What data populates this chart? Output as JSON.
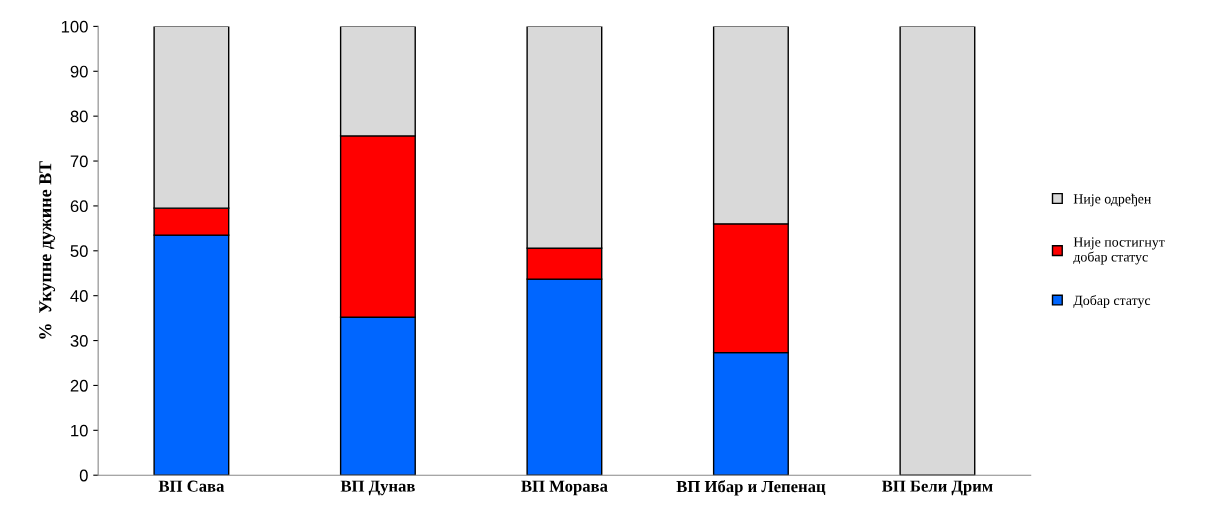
{
  "chart_data": {
    "type": "bar",
    "stacked": true,
    "ylabel": "%  Укупне дужине ВТ",
    "categories": [
      "ВП Сава",
      "ВП Дунав",
      "ВП Морава",
      "ВП Ибар и Лепенац",
      "ВП Бели Дрим"
    ],
    "series": [
      {
        "name": "Добар статус",
        "color": "#0066ff",
        "values": [
          53.5,
          35.2,
          43.7,
          27.3,
          0
        ]
      },
      {
        "name": "Није постигнут добар статус",
        "color": "#ff0000",
        "values": [
          6,
          40.4,
          6.9,
          28.7,
          0
        ]
      },
      {
        "name": "Није одређен",
        "color": "#d9d9d9",
        "values": [
          40.5,
          24.4,
          49.4,
          44,
          100
        ]
      }
    ],
    "ylim": [
      0,
      100
    ],
    "yticks": [
      0,
      10,
      20,
      30,
      40,
      50,
      60,
      70,
      80,
      90,
      100
    ],
    "grid": false,
    "legend": "right"
  }
}
